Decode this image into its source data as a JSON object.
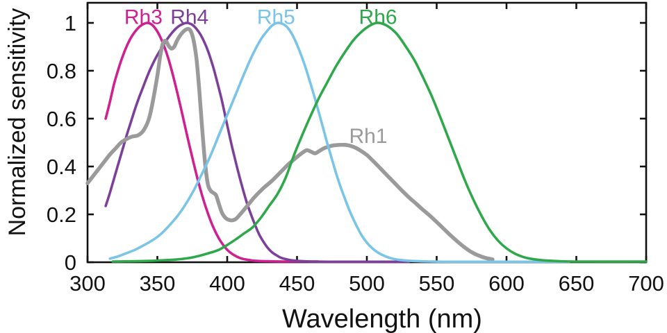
{
  "chart_data": {
    "type": "line",
    "title": "",
    "xlabel": "Wavelength (nm)",
    "ylabel": "Normalized sensitivity",
    "xlim": [
      300,
      700
    ],
    "ylim": [
      0,
      1.084
    ],
    "x_ticks": [
      300,
      350,
      400,
      450,
      500,
      550,
      600,
      650,
      700
    ],
    "x_tick_labels": [
      "300",
      "350",
      "400",
      "450",
      "500",
      "550",
      "600",
      "650",
      "700"
    ],
    "y_ticks": [
      0,
      0.2,
      0.4,
      0.6,
      0.8,
      1
    ],
    "y_tick_labels": [
      "0",
      "0.2",
      "0.4",
      "0.6",
      "0.8",
      "1"
    ],
    "grid": false,
    "box": true,
    "tick_direction": "in",
    "axis_color": "#111111",
    "background_color": "#ffffff",
    "legend": {
      "style": "inline-curve-labels"
    },
    "series": [
      {
        "name": "Rh3",
        "color": "#ce2090",
        "line_width": 3.6,
        "label": {
          "text": "Rh3",
          "x": 340,
          "y": 1.028
        },
        "points": [
          [
            313,
            0.6
          ],
          [
            316,
            0.67
          ],
          [
            319,
            0.745
          ],
          [
            322,
            0.805
          ],
          [
            325,
            0.858
          ],
          [
            328,
            0.902
          ],
          [
            331,
            0.937
          ],
          [
            334,
            0.963
          ],
          [
            337,
            0.983
          ],
          [
            340,
            0.995
          ],
          [
            343,
            1.0
          ],
          [
            346,
            0.993
          ],
          [
            349,
            0.973
          ],
          [
            352,
            0.942
          ],
          [
            355,
            0.9
          ],
          [
            358,
            0.848
          ],
          [
            361,
            0.785
          ],
          [
            364,
            0.715
          ],
          [
            367,
            0.64
          ],
          [
            370,
            0.563
          ],
          [
            373,
            0.487
          ],
          [
            376,
            0.413
          ],
          [
            379,
            0.343
          ],
          [
            382,
            0.28
          ],
          [
            385,
            0.224
          ],
          [
            388,
            0.175
          ],
          [
            391,
            0.134
          ],
          [
            394,
            0.1
          ],
          [
            397,
            0.073
          ],
          [
            400,
            0.052
          ],
          [
            403,
            0.037
          ],
          [
            406,
            0.026
          ],
          [
            409,
            0.018
          ],
          [
            412,
            0.013
          ],
          [
            416,
            0.009
          ],
          [
            420,
            0.006
          ],
          [
            428,
            0.004
          ],
          [
            440,
            0.003
          ],
          [
            465,
            0.003
          ]
        ]
      },
      {
        "name": "Rh4",
        "color": "#7c3f9a",
        "line_width": 3.6,
        "label": {
          "text": "Rh4",
          "x": 373,
          "y": 1.028
        },
        "points": [
          [
            313,
            0.235
          ],
          [
            316,
            0.29
          ],
          [
            319,
            0.35
          ],
          [
            322,
            0.41
          ],
          [
            325,
            0.47
          ],
          [
            328,
            0.53
          ],
          [
            331,
            0.585
          ],
          [
            334,
            0.64
          ],
          [
            337,
            0.69
          ],
          [
            340,
            0.735
          ],
          [
            343,
            0.78
          ],
          [
            346,
            0.82
          ],
          [
            349,
            0.855
          ],
          [
            352,
            0.885
          ],
          [
            355,
            0.915
          ],
          [
            358,
            0.94
          ],
          [
            361,
            0.962
          ],
          [
            364,
            0.98
          ],
          [
            367,
            0.992
          ],
          [
            371,
            1.0
          ],
          [
            375,
            0.992
          ],
          [
            378,
            0.975
          ],
          [
            381,
            0.95
          ],
          [
            384,
            0.915
          ],
          [
            387,
            0.87
          ],
          [
            390,
            0.815
          ],
          [
            393,
            0.75
          ],
          [
            396,
            0.68
          ],
          [
            399,
            0.6
          ],
          [
            402,
            0.52
          ],
          [
            405,
            0.445
          ],
          [
            408,
            0.375
          ],
          [
            411,
            0.31
          ],
          [
            414,
            0.25
          ],
          [
            417,
            0.2
          ],
          [
            420,
            0.155
          ],
          [
            423,
            0.115
          ],
          [
            426,
            0.085
          ],
          [
            429,
            0.06
          ],
          [
            432,
            0.042
          ],
          [
            435,
            0.03
          ],
          [
            438,
            0.02
          ],
          [
            442,
            0.013
          ],
          [
            446,
            0.008
          ],
          [
            452,
            0.005
          ],
          [
            460,
            0.003
          ],
          [
            475,
            0.002
          ],
          [
            500,
            0.002
          ],
          [
            530,
            0.002
          ]
        ]
      },
      {
        "name": "Rh1",
        "color": "#9a9a9a",
        "line_width": 5.5,
        "label": {
          "text": "Rh1",
          "x": 501,
          "y": 0.53
        },
        "points": [
          [
            300,
            0.33
          ],
          [
            304,
            0.36
          ],
          [
            308,
            0.39
          ],
          [
            312,
            0.42
          ],
          [
            316,
            0.45
          ],
          [
            320,
            0.475
          ],
          [
            324,
            0.5
          ],
          [
            328,
            0.515
          ],
          [
            332,
            0.525
          ],
          [
            336,
            0.53
          ],
          [
            340,
            0.55
          ],
          [
            344,
            0.6
          ],
          [
            347,
            0.68
          ],
          [
            350,
            0.78
          ],
          [
            352,
            0.86
          ],
          [
            354,
            0.915
          ],
          [
            356,
            0.925
          ],
          [
            358,
            0.905
          ],
          [
            360,
            0.893
          ],
          [
            362,
            0.9
          ],
          [
            364,
            0.925
          ],
          [
            366,
            0.945
          ],
          [
            368,
            0.96
          ],
          [
            370,
            0.97
          ],
          [
            372,
            0.975
          ],
          [
            374,
            0.965
          ],
          [
            376,
            0.925
          ],
          [
            378,
            0.85
          ],
          [
            380,
            0.72
          ],
          [
            382,
            0.565
          ],
          [
            384,
            0.425
          ],
          [
            386,
            0.33
          ],
          [
            388,
            0.3
          ],
          [
            390,
            0.29
          ],
          [
            392,
            0.28
          ],
          [
            394,
            0.245
          ],
          [
            396,
            0.21
          ],
          [
            398,
            0.19
          ],
          [
            400,
            0.18
          ],
          [
            403,
            0.175
          ],
          [
            406,
            0.18
          ],
          [
            410,
            0.205
          ],
          [
            415,
            0.24
          ],
          [
            420,
            0.275
          ],
          [
            426,
            0.31
          ],
          [
            432,
            0.34
          ],
          [
            438,
            0.375
          ],
          [
            444,
            0.41
          ],
          [
            450,
            0.44
          ],
          [
            454,
            0.458
          ],
          [
            457,
            0.468
          ],
          [
            460,
            0.462
          ],
          [
            463,
            0.455
          ],
          [
            466,
            0.465
          ],
          [
            470,
            0.478
          ],
          [
            475,
            0.487
          ],
          [
            480,
            0.49
          ],
          [
            485,
            0.49
          ],
          [
            490,
            0.483
          ],
          [
            495,
            0.468
          ],
          [
            500,
            0.448
          ],
          [
            505,
            0.42
          ],
          [
            510,
            0.39
          ],
          [
            515,
            0.36
          ],
          [
            520,
            0.33
          ],
          [
            525,
            0.3
          ],
          [
            530,
            0.272
          ],
          [
            535,
            0.246
          ],
          [
            540,
            0.22
          ],
          [
            545,
            0.195
          ],
          [
            550,
            0.168
          ],
          [
            555,
            0.14
          ],
          [
            560,
            0.112
          ],
          [
            565,
            0.086
          ],
          [
            570,
            0.062
          ],
          [
            575,
            0.042
          ],
          [
            580,
            0.028
          ],
          [
            585,
            0.018
          ],
          [
            590,
            0.012
          ]
        ]
      },
      {
        "name": "Rh5",
        "color": "#79c4e7",
        "line_width": 3.6,
        "label": {
          "text": "Rh5",
          "x": 435,
          "y": 1.028
        },
        "points": [
          [
            316,
            0.015
          ],
          [
            322,
            0.025
          ],
          [
            328,
            0.038
          ],
          [
            334,
            0.052
          ],
          [
            340,
            0.07
          ],
          [
            346,
            0.09
          ],
          [
            352,
            0.115
          ],
          [
            358,
            0.15
          ],
          [
            364,
            0.19
          ],
          [
            370,
            0.24
          ],
          [
            376,
            0.3
          ],
          [
            382,
            0.37
          ],
          [
            388,
            0.445
          ],
          [
            394,
            0.53
          ],
          [
            400,
            0.615
          ],
          [
            406,
            0.7
          ],
          [
            412,
            0.785
          ],
          [
            418,
            0.865
          ],
          [
            424,
            0.93
          ],
          [
            428,
            0.962
          ],
          [
            432,
            0.988
          ],
          [
            436,
            1.0
          ],
          [
            440,
            0.995
          ],
          [
            444,
            0.975
          ],
          [
            448,
            0.935
          ],
          [
            452,
            0.88
          ],
          [
            456,
            0.815
          ],
          [
            460,
            0.74
          ],
          [
            464,
            0.66
          ],
          [
            468,
            0.575
          ],
          [
            472,
            0.49
          ],
          [
            476,
            0.41
          ],
          [
            480,
            0.335
          ],
          [
            484,
            0.27
          ],
          [
            488,
            0.21
          ],
          [
            492,
            0.16
          ],
          [
            496,
            0.115
          ],
          [
            500,
            0.082
          ],
          [
            504,
            0.058
          ],
          [
            508,
            0.04
          ],
          [
            512,
            0.028
          ],
          [
            516,
            0.019
          ],
          [
            520,
            0.013
          ],
          [
            526,
            0.008
          ],
          [
            534,
            0.005
          ],
          [
            545,
            0.003
          ],
          [
            560,
            0.002
          ],
          [
            600,
            0.002
          ],
          [
            645,
            0.002
          ]
        ]
      },
      {
        "name": "Rh6",
        "color": "#2fa84b",
        "line_width": 3.6,
        "label": {
          "text": "Rh6",
          "x": 508,
          "y": 1.028
        },
        "points": [
          [
            318,
            0.003
          ],
          [
            340,
            0.005
          ],
          [
            360,
            0.01
          ],
          [
            372,
            0.017
          ],
          [
            380,
            0.027
          ],
          [
            388,
            0.04
          ],
          [
            394,
            0.052
          ],
          [
            400,
            0.072
          ],
          [
            406,
            0.095
          ],
          [
            412,
            0.12
          ],
          [
            418,
            0.145
          ],
          [
            424,
            0.185
          ],
          [
            430,
            0.235
          ],
          [
            436,
            0.285
          ],
          [
            442,
            0.355
          ],
          [
            448,
            0.45
          ],
          [
            454,
            0.535
          ],
          [
            460,
            0.615
          ],
          [
            466,
            0.69
          ],
          [
            472,
            0.755
          ],
          [
            478,
            0.82
          ],
          [
            484,
            0.875
          ],
          [
            490,
            0.925
          ],
          [
            496,
            0.962
          ],
          [
            502,
            0.988
          ],
          [
            507,
            1.0
          ],
          [
            512,
            0.995
          ],
          [
            517,
            0.978
          ],
          [
            522,
            0.95
          ],
          [
            528,
            0.9
          ],
          [
            534,
            0.845
          ],
          [
            540,
            0.775
          ],
          [
            546,
            0.7
          ],
          [
            552,
            0.615
          ],
          [
            558,
            0.525
          ],
          [
            564,
            0.435
          ],
          [
            570,
            0.345
          ],
          [
            576,
            0.265
          ],
          [
            582,
            0.195
          ],
          [
            588,
            0.135
          ],
          [
            594,
            0.09
          ],
          [
            600,
            0.058
          ],
          [
            606,
            0.036
          ],
          [
            612,
            0.022
          ],
          [
            618,
            0.014
          ],
          [
            626,
            0.008
          ],
          [
            636,
            0.005
          ],
          [
            650,
            0.003
          ],
          [
            700,
            0.003
          ]
        ]
      }
    ]
  }
}
